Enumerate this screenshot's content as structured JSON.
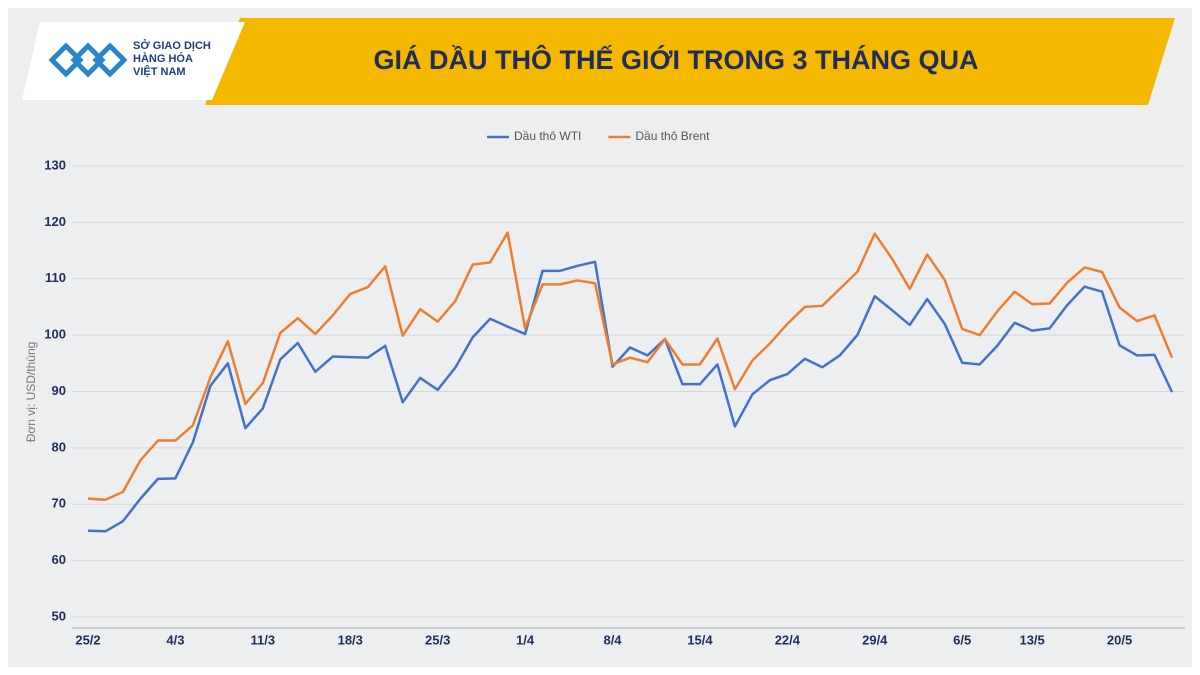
{
  "logo": {
    "lines": [
      "SỞ GIAO DỊCH",
      "HÀNG HÓA",
      "VIỆT NAM"
    ]
  },
  "chart_data": {
    "type": "line",
    "title": "GIÁ DẦU THÔ THẾ GIỚI TRONG 3 THÁNG QUA",
    "y_label": "Đơn vị: USD/thùng",
    "categories": [
      "25/2",
      null,
      null,
      null,
      null,
      "4/3",
      null,
      null,
      null,
      null,
      "11/3",
      null,
      null,
      null,
      null,
      "18/3",
      null,
      null,
      null,
      null,
      "25/3",
      null,
      null,
      null,
      null,
      "1/4",
      null,
      null,
      null,
      null,
      "8/4",
      null,
      null,
      null,
      null,
      "15/4",
      null,
      null,
      null,
      null,
      "22/4",
      null,
      null,
      null,
      null,
      "29/4",
      null,
      null,
      null,
      null,
      "6/5",
      null,
      null,
      null,
      "13/5",
      null,
      null,
      null,
      null,
      "20/5",
      null,
      null,
      null
    ],
    "series": [
      {
        "name": "Dầu thô WTI",
        "color": "#4472c4",
        "values": [
          65.3,
          65.2,
          67,
          71,
          74.5,
          74.6,
          81,
          91,
          95,
          83.5,
          87,
          95.7,
          98.6,
          93.5,
          96.2,
          96.1,
          96,
          98.1,
          88.1,
          92.4,
          90.3,
          94.2,
          99.6,
          102.9,
          101.5,
          100.2,
          111.4,
          111.4,
          112.3,
          113,
          94.4,
          97.8,
          96.4,
          99.3,
          91.3,
          91.3,
          94.8,
          83.8,
          89.5,
          92,
          93.1,
          95.8,
          94.3,
          96.4,
          100,
          106.9,
          104.4,
          101.8,
          106.4,
          102,
          95.1,
          94.8,
          98.1,
          102.2,
          100.8,
          101.2,
          105.3,
          108.6,
          107.7,
          98.2,
          96.4,
          96.5,
          89.9
        ]
      },
      {
        "name": "Dầu thô Brent",
        "color": "#ed7d31",
        "values": [
          71,
          70.8,
          72.2,
          77.8,
          81.3,
          81.3,
          84,
          92.5,
          98.9,
          87.8,
          91.5,
          100.4,
          103,
          100.2,
          103.5,
          107.3,
          108.5,
          112.2,
          99.9,
          104.6,
          102.4,
          106,
          112.5,
          112.9,
          118.2,
          101.2,
          109,
          109,
          109.7,
          109.2,
          94.8,
          96,
          95.2,
          99.3,
          94.8,
          94.8,
          99.4,
          90.4,
          95.5,
          98.5,
          102,
          105,
          105.2,
          108.2,
          111.2,
          118,
          113.5,
          108.2,
          114.3,
          109.8,
          101.1,
          100,
          104.2,
          107.7,
          105.5,
          105.6,
          109.3,
          112,
          111.2,
          104.9,
          102.5,
          103.5,
          96
        ]
      }
    ],
    "ylim": [
      50,
      130
    ],
    "yticks": [
      50,
      60,
      70,
      80,
      90,
      100,
      110,
      120,
      130
    ],
    "grid": true,
    "legend": "top"
  }
}
